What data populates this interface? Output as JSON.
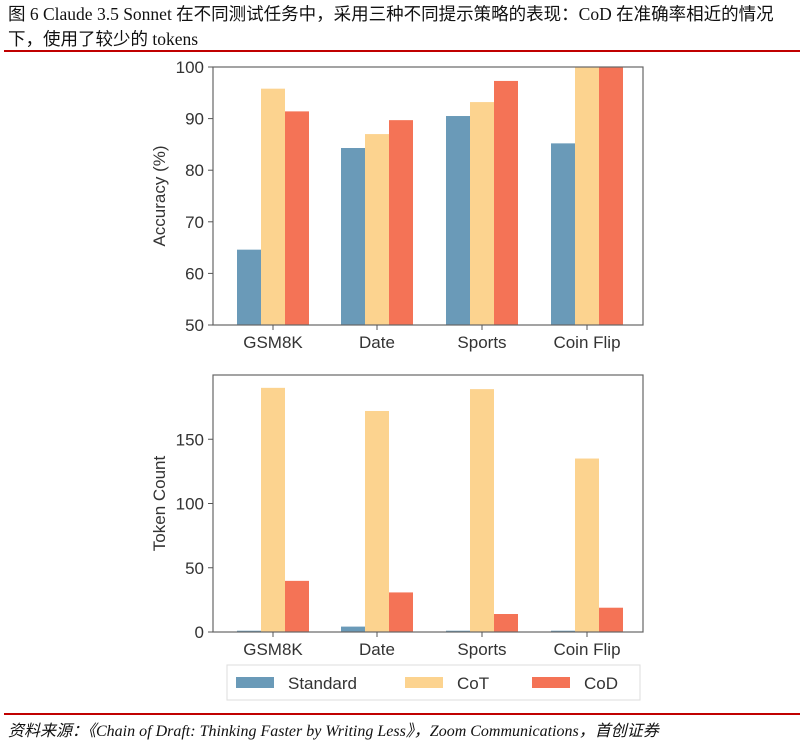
{
  "caption": "图 6 Claude 3.5 Sonnet 在不同测试任务中，采用三种不同提示策略的表现：CoD 在准确率相近的情况下，使用了较少的 tokens",
  "source": "资料来源：《Chain of Draft: Thinking Faster by Writing Less》，Zoom Communications，首创证券",
  "colors": {
    "Standard": "#6a9ab8",
    "CoT": "#fcd38f",
    "CoD": "#f47356",
    "rule": "#c00000"
  },
  "chart_data": [
    {
      "type": "bar",
      "title": "",
      "xlabel": "",
      "ylabel": "Accuracy (%)",
      "ylim": [
        50,
        100
      ],
      "yticks": [
        50,
        60,
        70,
        80,
        90,
        100
      ],
      "categories": [
        "GSM8K",
        "Date",
        "Sports",
        "Coin Flip"
      ],
      "series": [
        {
          "name": "Standard",
          "values": [
            64.6,
            84.3,
            90.5,
            85.2
          ]
        },
        {
          "name": "CoT",
          "values": [
            95.8,
            87.0,
            93.2,
            100.0
          ]
        },
        {
          "name": "CoD",
          "values": [
            91.4,
            89.7,
            97.3,
            100.0
          ]
        }
      ]
    },
    {
      "type": "bar",
      "title": "",
      "xlabel": "",
      "ylabel": "Token Count",
      "ylim": [
        0,
        200
      ],
      "yticks": [
        0,
        50,
        100,
        150
      ],
      "categories": [
        "GSM8K",
        "Date",
        "Sports",
        "Coin Flip"
      ],
      "series": [
        {
          "name": "Standard",
          "values": [
            1.0,
            4.2,
            1.0,
            1.0
          ]
        },
        {
          "name": "CoT",
          "values": [
            190.0,
            172.0,
            189.0,
            135.0
          ]
        },
        {
          "name": "CoD",
          "values": [
            39.8,
            30.8,
            14.0,
            18.9
          ]
        }
      ],
      "legend": {
        "placement": "bottom",
        "entries": [
          "Standard",
          "CoT",
          "CoD"
        ]
      }
    }
  ]
}
